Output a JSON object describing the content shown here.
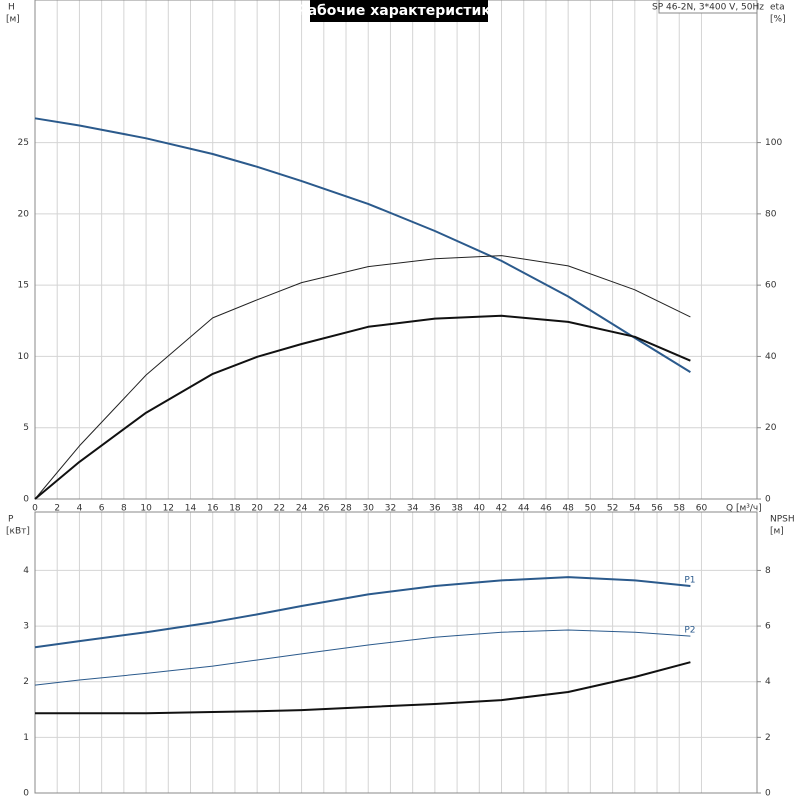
{
  "chart_data": [
    {
      "type": "line",
      "title": "Рабочие характеристики",
      "subtitle": "SP 46-2N, 3*400 V, 50Hz",
      "xlabel": "Q [м³/ч]",
      "ylabel": "H",
      "ylabel_unit": "[м]",
      "y2label": "eta",
      "y2label_unit": "[%]",
      "xlim": [
        0,
        65
      ],
      "xticks": [
        0,
        2,
        4,
        6,
        8,
        10,
        12,
        14,
        16,
        18,
        20,
        22,
        24,
        26,
        28,
        30,
        32,
        34,
        36,
        38,
        40,
        42,
        44,
        46,
        48,
        50,
        52,
        54,
        56,
        58,
        60
      ],
      "xtick_labels": true,
      "ylim": [
        0,
        35
      ],
      "yticks": [
        0,
        5,
        10,
        15,
        20,
        25
      ],
      "y2lim": [
        0,
        140
      ],
      "y2ticks": [
        0,
        20,
        40,
        60,
        80,
        100
      ],
      "grid": true,
      "x": [
        0,
        4,
        10,
        16,
        20,
        24,
        30,
        36,
        42,
        48,
        54,
        59
      ],
      "series": [
        {
          "color": "#2b5a8c",
          "width": 2,
          "values": [
            26.7,
            26.2,
            25.3,
            24.2,
            23.3,
            22.3,
            20.7,
            18.8,
            16.7,
            14.2,
            11.3,
            8.9
          ]
        },
        {
          "color": "#222222",
          "width": 1,
          "axis": "y2",
          "values": [
            0,
            14.9,
            34.8,
            50.8,
            55.9,
            60.7,
            65.2,
            67.4,
            68.3,
            65.4,
            58.7,
            51.1
          ]
        },
        {
          "color": "#111111",
          "width": 2,
          "axis": "y2",
          "values": [
            0,
            10.4,
            24.2,
            35.1,
            39.9,
            43.5,
            48.3,
            50.6,
            51.4,
            49.7,
            45.5,
            38.8
          ]
        }
      ]
    },
    {
      "type": "line",
      "ylabel": "P",
      "ylabel_unit": "[кВт]",
      "y2label": "NPSH",
      "y2label_unit": "[м]",
      "xlim": [
        0,
        65
      ],
      "xticks": [
        0,
        2,
        4,
        6,
        8,
        10,
        12,
        14,
        16,
        18,
        20,
        22,
        24,
        26,
        28,
        30,
        32,
        34,
        36,
        38,
        40,
        42,
        44,
        46,
        48,
        50,
        52,
        54,
        56,
        58,
        60
      ],
      "xtick_labels": false,
      "ylim": [
        0,
        5.05
      ],
      "yticks": [
        0,
        1,
        2,
        3,
        4
      ],
      "y2lim": [
        0,
        10.1
      ],
      "y2ticks": [
        0,
        2,
        4,
        6,
        8
      ],
      "grid": true,
      "x": [
        0,
        4,
        10,
        16,
        20,
        24,
        30,
        36,
        42,
        48,
        54,
        59
      ],
      "series": [
        {
          "name": "P1",
          "color": "#2b5a8c",
          "width": 2,
          "values": [
            2.62,
            2.73,
            2.89,
            3.07,
            3.21,
            3.36,
            3.57,
            3.72,
            3.82,
            3.88,
            3.82,
            3.72
          ]
        },
        {
          "name": "P2",
          "color": "#2b5a8c",
          "width": 1,
          "values": [
            1.94,
            2.03,
            2.15,
            2.28,
            2.39,
            2.5,
            2.66,
            2.8,
            2.89,
            2.93,
            2.89,
            2.82
          ]
        },
        {
          "color": "#111111",
          "width": 2,
          "axis": "y2",
          "values": [
            2.87,
            2.87,
            2.87,
            2.91,
            2.94,
            2.98,
            3.09,
            3.2,
            3.34,
            3.63,
            4.17,
            4.7
          ]
        }
      ]
    }
  ]
}
